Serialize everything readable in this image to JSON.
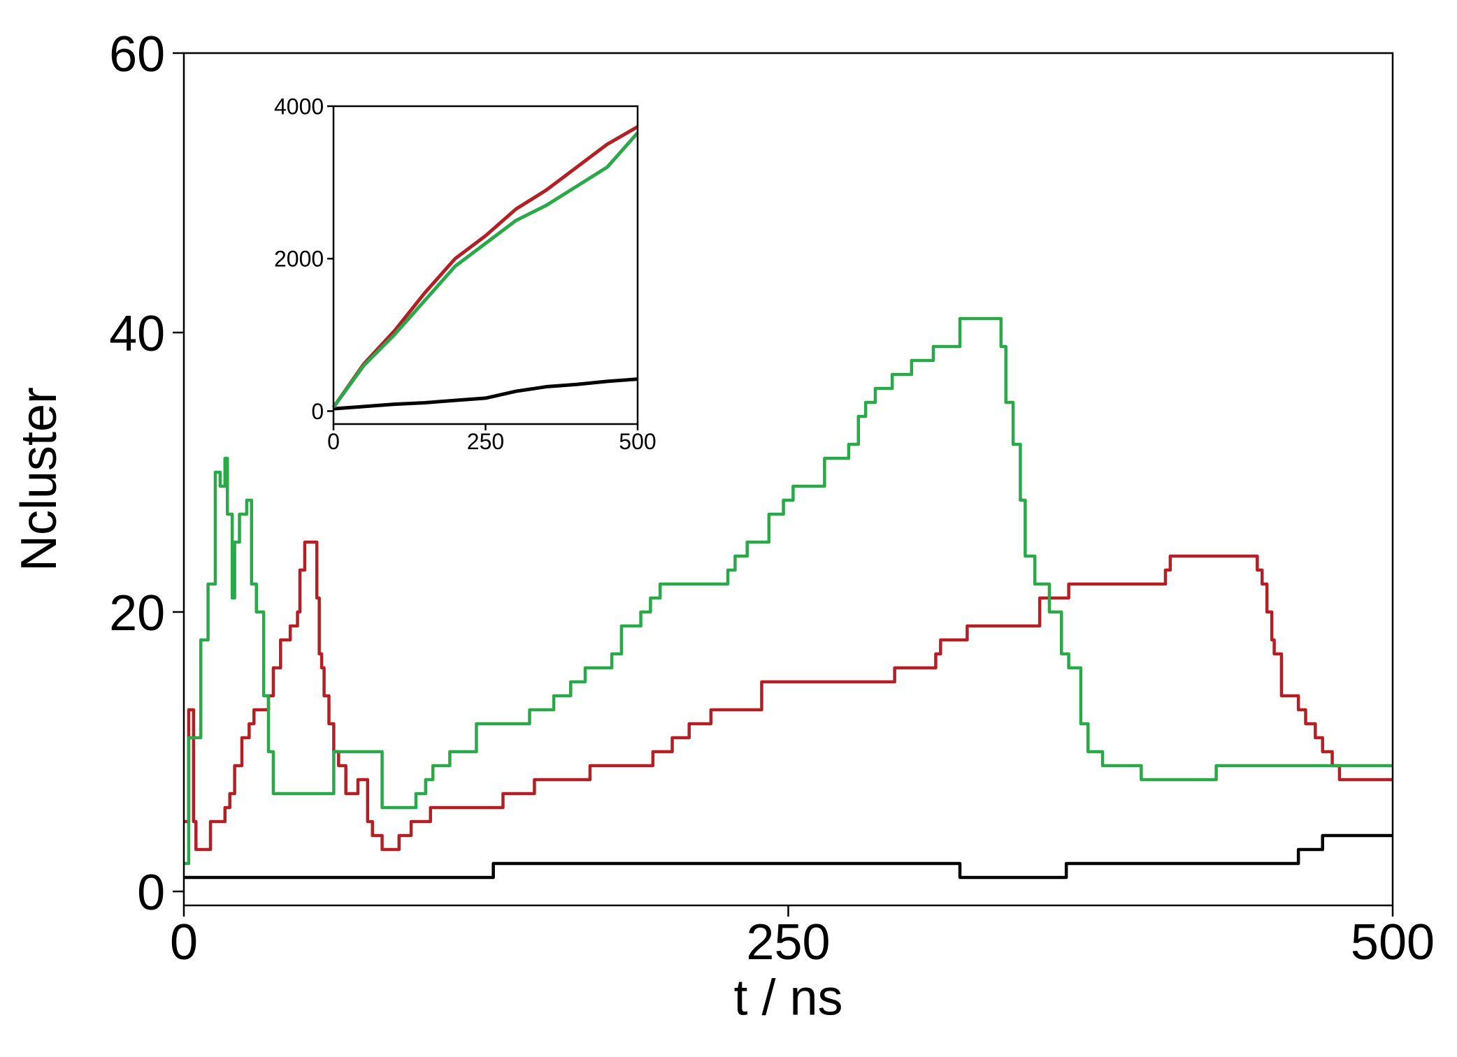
{
  "chart_data": [
    {
      "type": "line",
      "step": true,
      "xlabel": "t / ns",
      "ylabel": "Ncluster",
      "xlim": [
        0,
        500
      ],
      "xticks": [
        0,
        250,
        500
      ],
      "ylim": [
        -1,
        60
      ],
      "yticks": [
        0,
        20,
        40,
        60
      ],
      "series": [
        {
          "name": "black",
          "color": "#000000",
          "x": [
            0,
            128,
            321,
            365,
            461,
            471,
            500
          ],
          "values": [
            1,
            2,
            1,
            2,
            3,
            4,
            4
          ]
        },
        {
          "name": "red",
          "color": "#b22025",
          "x": [
            0,
            2,
            4,
            5,
            11,
            17,
            19,
            21,
            24,
            27,
            29,
            35,
            37,
            40,
            44,
            47,
            48,
            50,
            55,
            56,
            57,
            58,
            60,
            62,
            64,
            67,
            72,
            76,
            78,
            82,
            89,
            94,
            102,
            132,
            145,
            168,
            194,
            202,
            209,
            218,
            239,
            294,
            311,
            313,
            324,
            354,
            366,
            406,
            408,
            444,
            446,
            448,
            450,
            451,
            454,
            461,
            464,
            468,
            471,
            475,
            478,
            500
          ],
          "values": [
            5,
            13,
            5,
            3,
            5,
            6,
            7,
            9,
            11,
            12,
            13,
            14,
            16,
            18,
            19,
            20,
            23,
            25,
            21,
            17,
            16,
            14,
            12,
            10,
            9,
            7,
            8,
            5,
            4,
            3,
            4,
            5,
            6,
            7,
            8,
            9,
            10,
            11,
            12,
            13,
            15,
            16,
            17,
            18,
            19,
            21,
            22,
            23,
            24,
            23,
            22,
            20,
            18,
            17,
            14,
            13,
            12,
            11,
            10,
            9,
            8,
            8
          ]
        },
        {
          "name": "green",
          "color": "#2aa84a",
          "x": [
            0,
            2,
            7,
            10,
            13,
            15,
            17,
            18,
            20,
            21,
            23,
            26,
            28,
            30,
            33,
            35,
            37,
            62,
            82,
            96,
            100,
            103,
            110,
            121,
            143,
            153,
            160,
            166,
            177,
            181,
            189,
            193,
            197,
            225,
            228,
            233,
            242,
            248,
            252,
            265,
            275,
            279,
            282,
            286,
            293,
            301,
            310,
            321,
            338,
            340,
            343,
            346,
            348,
            352,
            358,
            363,
            366,
            371,
            374,
            380,
            396,
            427,
            500
          ],
          "values": [
            2,
            11,
            18,
            22,
            30,
            29,
            31,
            27,
            21,
            25,
            27,
            28,
            22,
            20,
            14,
            10,
            7,
            10,
            6,
            7,
            8,
            9,
            10,
            12,
            13,
            14,
            15,
            16,
            17,
            19,
            20,
            21,
            22,
            23,
            24,
            25,
            27,
            28,
            29,
            31,
            32,
            34,
            35,
            36,
            37,
            38,
            39,
            41,
            39,
            35,
            32,
            28,
            24,
            22,
            20,
            17,
            16,
            12,
            10,
            9,
            8,
            9,
            9
          ]
        }
      ]
    },
    {
      "type": "line",
      "step": false,
      "xlim": [
        0,
        500
      ],
      "xticks": [
        0,
        250,
        500
      ],
      "ylim": [
        -170,
        4000
      ],
      "yticks": [
        0,
        2000,
        4000
      ],
      "series": [
        {
          "name": "black",
          "color": "#000000",
          "x": [
            0,
            50,
            100,
            150,
            200,
            250,
            300,
            350,
            400,
            450,
            500
          ],
          "values": [
            30,
            60,
            90,
            110,
            140,
            170,
            260,
            320,
            350,
            390,
            420
          ]
        },
        {
          "name": "red",
          "color": "#b22025",
          "x": [
            0,
            50,
            100,
            150,
            200,
            250,
            300,
            350,
            400,
            450,
            500
          ],
          "values": [
            50,
            620,
            1050,
            1550,
            2000,
            2300,
            2650,
            2900,
            3200,
            3500,
            3730
          ]
        },
        {
          "name": "green",
          "color": "#2aa84a",
          "x": [
            0,
            50,
            100,
            150,
            200,
            250,
            300,
            350,
            400,
            450,
            500
          ],
          "values": [
            50,
            600,
            1000,
            1450,
            1900,
            2200,
            2500,
            2700,
            2950,
            3200,
            3650
          ]
        }
      ]
    }
  ]
}
